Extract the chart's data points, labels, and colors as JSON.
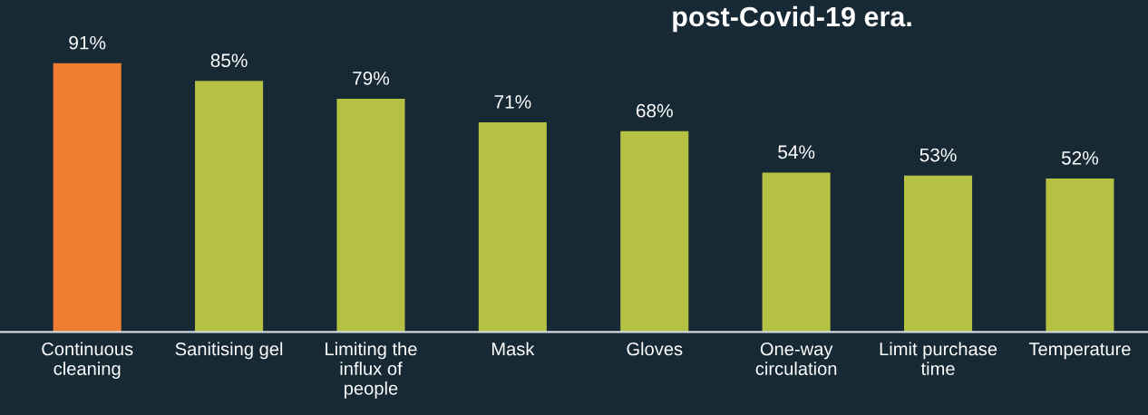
{
  "chart_data": {
    "type": "bar",
    "title": "post-Covid-19 era.",
    "categories": [
      "Continuous\ncleaning",
      "Sanitising gel",
      "Limiting the\ninflux of\npeople",
      "Mask",
      "Gloves",
      "One-way\ncirculation",
      "Limit purchase\ntime",
      "Temperature"
    ],
    "values": [
      91,
      85,
      79,
      71,
      68,
      54,
      53,
      52
    ],
    "colors": [
      "#ed7d31",
      "#b5c142",
      "#b5c142",
      "#b5c142",
      "#b5c142",
      "#b5c142",
      "#b5c142",
      "#b5c142"
    ],
    "value_labels": [
      "91%",
      "85%",
      "79%",
      "71%",
      "68%",
      "54%",
      "53%",
      "52%"
    ],
    "tick_labels": "x",
    "grid": false,
    "legend": false
  }
}
